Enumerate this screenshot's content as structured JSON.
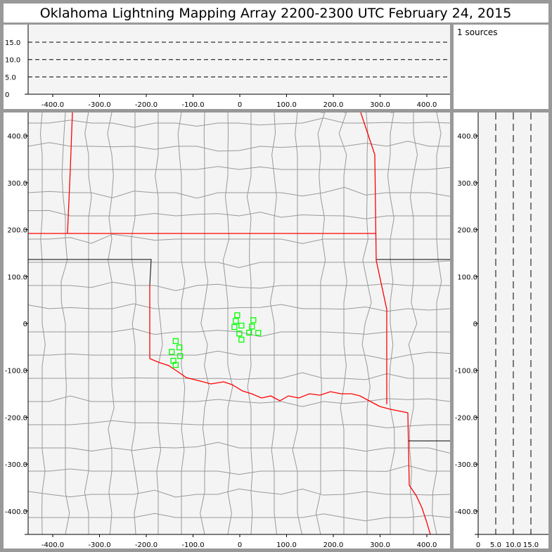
{
  "title": "Oklahoma Lightning Mapping Array   2200-2300 UTC  February 24, 2015",
  "info": {
    "sources_label": "1 sources"
  },
  "colors": {
    "source_marker": "#00ff00",
    "state_border": "#ff0000",
    "county_border": "#999999",
    "plot_background": "#f4f4f4"
  },
  "chart_data": [
    {
      "type": "scatter",
      "panel": "east-west vs altitude",
      "xlim": [
        -450,
        450
      ],
      "ylim": [
        0,
        20
      ],
      "xticks": [
        "-400.0",
        "-300.0",
        "-200.0",
        "-100.0",
        "0",
        "100.0",
        "200.0",
        "300.0",
        "400.0"
      ],
      "yticks": [
        "0",
        "5.0",
        "10.0",
        "15.0"
      ],
      "grid_dashed_at": [
        5,
        10,
        15
      ],
      "points": []
    },
    {
      "type": "scatter",
      "panel": "plan view",
      "xlim": [
        -450,
        450
      ],
      "ylim": [
        -450,
        450
      ],
      "xticks": [
        "-400.0",
        "-300.0",
        "-200.0",
        "-100.0",
        "0",
        "100.0",
        "200.0",
        "300.0",
        "400.0"
      ],
      "yticks": [
        "400.0",
        "300.0",
        "200.0",
        "100.0",
        "0",
        "-100.0",
        "-200.0",
        "-300.0",
        "-400.0"
      ],
      "points": [
        {
          "x": -5.5,
          "y": 17.5
        },
        {
          "x": -8.5,
          "y": 5.5
        },
        {
          "x": 29,
          "y": 7
        },
        {
          "x": -11.5,
          "y": -7.5
        },
        {
          "x": 3.5,
          "y": -4.5
        },
        {
          "x": 26,
          "y": -6.5
        },
        {
          "x": -1,
          "y": -21.5
        },
        {
          "x": 20,
          "y": -19.5
        },
        {
          "x": 39.5,
          "y": -20
        },
        {
          "x": 3.5,
          "y": -34.5
        },
        {
          "x": -137,
          "y": -37.5
        },
        {
          "x": -129,
          "y": -51
        },
        {
          "x": -145.5,
          "y": -60.5
        },
        {
          "x": -127.5,
          "y": -69.5
        },
        {
          "x": -142,
          "y": -79.5
        },
        {
          "x": -137,
          "y": -88.5
        }
      ]
    },
    {
      "type": "scatter",
      "panel": "altitude vs north-south",
      "xlim": [
        0,
        20
      ],
      "ylim": [
        -450,
        450
      ],
      "xticks": [
        "0",
        "5.0",
        "10.0",
        "15.0"
      ],
      "yticks": [
        "400.0",
        "300.0",
        "200.0",
        "100.0",
        "0",
        "-100.0",
        "-200.0",
        "-300.0",
        "-400.0"
      ],
      "grid_dashed_at": [
        5,
        10,
        15
      ],
      "points": []
    }
  ]
}
